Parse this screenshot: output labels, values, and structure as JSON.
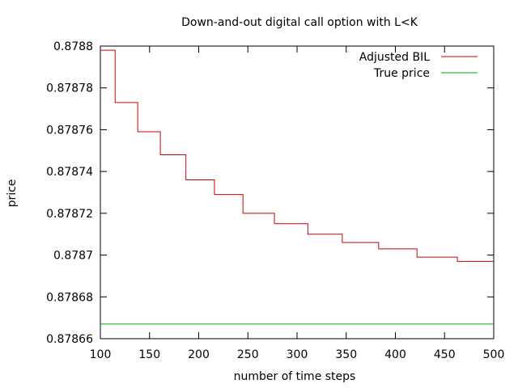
{
  "chart_data": {
    "type": "line",
    "title": "Down-and-out digital call option with L<K",
    "xlabel": "number of time steps",
    "ylabel": "price",
    "xlim": [
      100,
      500
    ],
    "ylim": [
      0.87866,
      0.8788
    ],
    "x_ticks": [
      100,
      150,
      200,
      250,
      300,
      350,
      400,
      450,
      500
    ],
    "x_tick_labels": [
      "100",
      "150",
      "200",
      "250",
      "300",
      "350",
      "400",
      "450",
      "500"
    ],
    "y_ticks": [
      0.87866,
      0.87868,
      0.8787,
      0.87872,
      0.87874,
      0.87876,
      0.87878,
      0.8788
    ],
    "y_tick_labels": [
      "0.87866",
      "0.87868",
      "0.8787",
      "0.87872",
      "0.87874",
      "0.87876",
      "0.87878",
      "0.8788"
    ],
    "grid": false,
    "legend_position": "top-right",
    "series": [
      {
        "name": "Adjusted BIL",
        "color": "#cc0000",
        "style": "step",
        "points": [
          [
            100,
            0.878798
          ],
          [
            115,
            0.878773
          ],
          [
            138,
            0.878759
          ],
          [
            161,
            0.878748
          ],
          [
            187,
            0.878736
          ],
          [
            216,
            0.878729
          ],
          [
            245,
            0.87872
          ],
          [
            277,
            0.878715
          ],
          [
            311,
            0.87871
          ],
          [
            346,
            0.878706
          ],
          [
            383,
            0.878703
          ],
          [
            422,
            0.878699
          ],
          [
            463,
            0.878697
          ],
          [
            500,
            0.878697
          ]
        ]
      },
      {
        "name": "True price",
        "color": "#00a000",
        "style": "line",
        "points": [
          [
            100,
            0.878667
          ],
          [
            500,
            0.878667
          ]
        ]
      }
    ]
  }
}
